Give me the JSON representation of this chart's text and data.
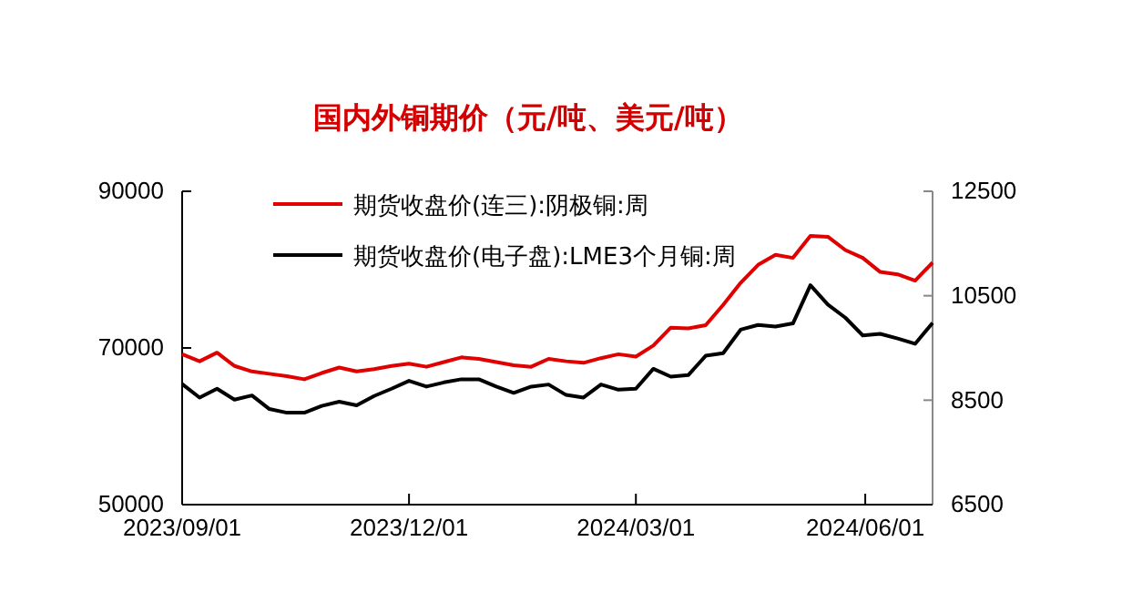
{
  "chart_data": {
    "type": "line",
    "title": "国内外铜期价（元/吨、美元/吨）",
    "x": [
      "2023-09-01",
      "2023-09-08",
      "2023-09-15",
      "2023-09-22",
      "2023-09-29",
      "2023-10-06",
      "2023-10-13",
      "2023-10-20",
      "2023-10-27",
      "2023-11-03",
      "2023-11-10",
      "2023-11-17",
      "2023-11-24",
      "2023-12-01",
      "2023-12-08",
      "2023-12-15",
      "2023-12-22",
      "2023-12-29",
      "2024-01-05",
      "2024-01-12",
      "2024-01-19",
      "2024-01-26",
      "2024-02-02",
      "2024-02-09",
      "2024-02-16",
      "2024-02-23",
      "2024-03-01",
      "2024-03-08",
      "2024-03-15",
      "2024-03-22",
      "2024-03-29",
      "2024-04-05",
      "2024-04-12",
      "2024-04-19",
      "2024-04-26",
      "2024-05-03",
      "2024-05-10",
      "2024-05-17",
      "2024-05-24",
      "2024-05-31",
      "2024-06-07",
      "2024-06-14",
      "2024-06-21",
      "2024-06-28"
    ],
    "series": [
      {
        "name": "期货收盘价(连三):阴极铜:周",
        "color": "#e00000",
        "values": [
          69200,
          68300,
          69400,
          67700,
          67000,
          66700,
          66400,
          66000,
          66800,
          67500,
          67000,
          67300,
          67700,
          68000,
          67600,
          68200,
          68800,
          68600,
          68200,
          67800,
          67600,
          68600,
          68300,
          68100,
          68700,
          69200,
          68900,
          70300,
          72600,
          72500,
          72900,
          75500,
          78300,
          80600,
          81900,
          81500,
          84300,
          84200,
          82500,
          81500,
          79700,
          79400,
          78600,
          80900
        ]
      },
      {
        "name": "期货收盘价(电子盘):LME3个月铜:周",
        "color": "#000000",
        "axis": "y2",
        "values": [
          8810,
          8550,
          8720,
          8510,
          8590,
          8330,
          8260,
          8260,
          8390,
          8470,
          8400,
          8580,
          8720,
          8870,
          8760,
          8840,
          8900,
          8900,
          8760,
          8640,
          8760,
          8800,
          8600,
          8550,
          8800,
          8700,
          8720,
          9100,
          8950,
          8980,
          9350,
          9400,
          9850,
          9940,
          9910,
          9970,
          10700,
          10330,
          10080,
          9740,
          9770,
          9680,
          9580,
          9980
        ]
      }
    ],
    "xlim": [
      "2023-09-01",
      "2024-06-28"
    ],
    "xticks": [
      {
        "value": "2023-09-01",
        "label": "2023/09/01"
      },
      {
        "value": "2023-12-01",
        "label": "2023/12/01"
      },
      {
        "value": "2024-03-01",
        "label": "2024/03/01"
      },
      {
        "value": "2024-06-01",
        "label": "2024/06/01"
      }
    ],
    "ylim": [
      50000,
      90000
    ],
    "yticks": [
      50000,
      70000,
      90000
    ],
    "y2lim": [
      6500,
      12500
    ],
    "y2ticks": [
      6500,
      8500,
      10500,
      12500
    ],
    "legend": "top",
    "grid": false
  }
}
